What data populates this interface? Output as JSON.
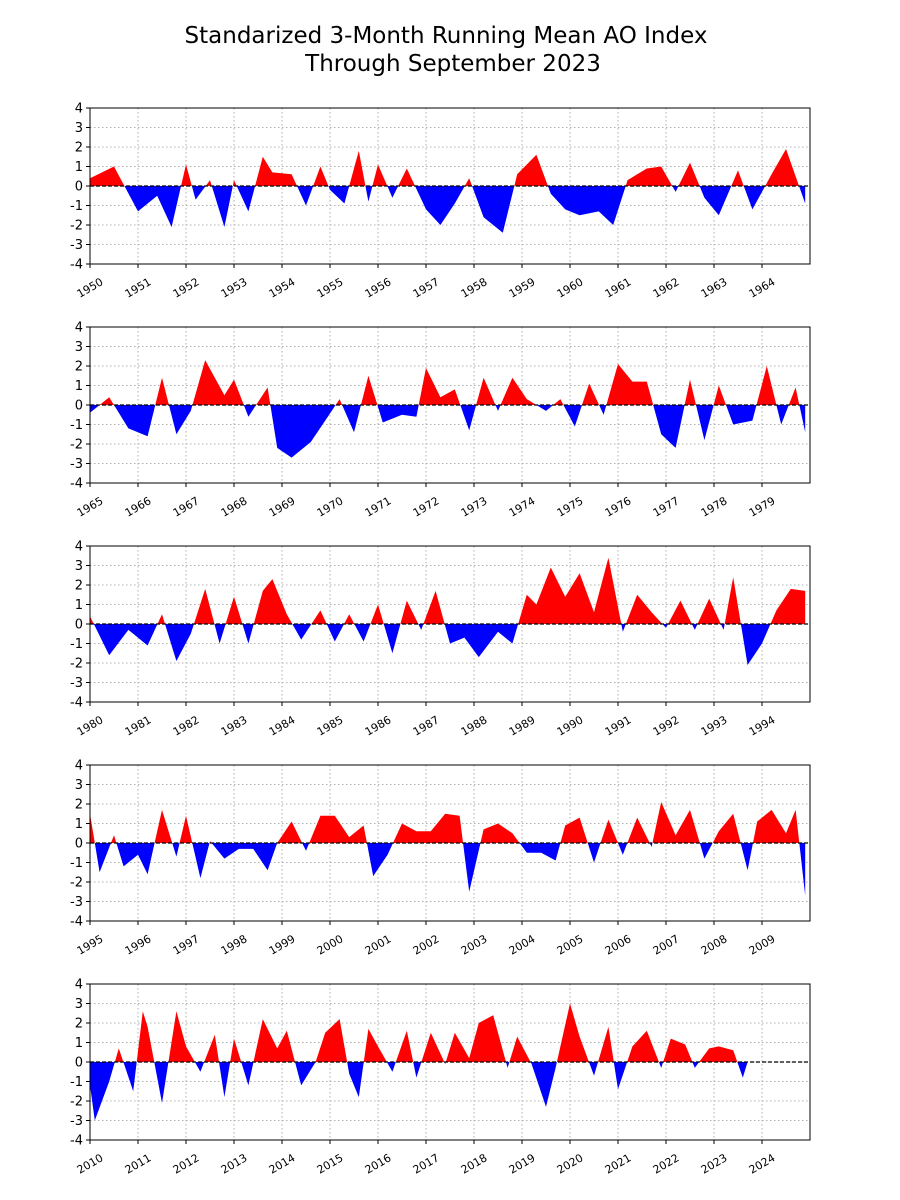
{
  "title": {
    "line1": "Standarized 3-Month Running Mean AO Index",
    "line2": "Through September 2023"
  },
  "colors": {
    "positive": "#ff0000",
    "negative": "#0000ff",
    "grid": "#b0b0b0",
    "zero_line": "#000000"
  },
  "chart_data": [
    {
      "type": "area",
      "ylim": [
        -4,
        4
      ],
      "yticks": [
        -4,
        -3,
        -2,
        -1,
        0,
        1,
        2,
        3,
        4
      ],
      "xlim": [
        1950,
        1965
      ],
      "xticks": [
        "1950",
        "1951",
        "1952",
        "1953",
        "1954",
        "1955",
        "1956",
        "1957",
        "1958",
        "1959",
        "1960",
        "1961",
        "1962",
        "1963",
        "1964"
      ],
      "grid": true,
      "zero_line": "dashed",
      "fill": "red above zero, blue below zero",
      "x": [
        1950.0,
        1950.5,
        1951.0,
        1951.4,
        1951.7,
        1952.0,
        1952.2,
        1952.5,
        1952.8,
        1953.0,
        1953.3,
        1953.6,
        1953.8,
        1954.2,
        1954.5,
        1954.8,
        1955.0,
        1955.3,
        1955.6,
        1955.8,
        1956.0,
        1956.3,
        1956.6,
        1957.0,
        1957.3,
        1957.6,
        1957.9,
        1958.2,
        1958.6,
        1958.9,
        1959.3,
        1959.6,
        1959.9,
        1960.2,
        1960.6,
        1960.9,
        1961.2,
        1961.6,
        1961.9,
        1962.2,
        1962.5,
        1962.8,
        1963.1,
        1963.5,
        1963.8,
        1964.2,
        1964.5,
        1964.9
      ],
      "y": [
        0.4,
        1.0,
        -1.3,
        -0.5,
        -2.1,
        1.1,
        -0.7,
        0.3,
        -2.1,
        0.3,
        -1.3,
        1.5,
        0.7,
        0.6,
        -1.0,
        1.0,
        -0.2,
        -0.9,
        1.8,
        -0.8,
        1.1,
        -0.6,
        0.9,
        -1.2,
        -2.0,
        -0.9,
        0.4,
        -1.6,
        -2.4,
        0.6,
        1.6,
        -0.4,
        -1.2,
        -1.5,
        -1.3,
        -2.0,
        0.3,
        0.9,
        1.0,
        -0.3,
        1.2,
        -0.6,
        -1.5,
        0.8,
        -1.2,
        0.6,
        1.9,
        -0.9
      ]
    },
    {
      "type": "area",
      "ylim": [
        -4,
        4
      ],
      "yticks": [
        -4,
        -3,
        -2,
        -1,
        0,
        1,
        2,
        3,
        4
      ],
      "xlim": [
        1965,
        1980
      ],
      "xticks": [
        "1965",
        "1966",
        "1967",
        "1968",
        "1969",
        "1970",
        "1971",
        "1972",
        "1973",
        "1974",
        "1975",
        "1976",
        "1977",
        "1978",
        "1979"
      ],
      "grid": true,
      "zero_line": "dashed",
      "fill": "red above zero, blue below zero",
      "x": [
        1965.0,
        1965.4,
        1965.8,
        1966.2,
        1966.5,
        1966.8,
        1967.1,
        1967.4,
        1967.8,
        1968.0,
        1968.3,
        1968.7,
        1968.9,
        1969.2,
        1969.6,
        1969.9,
        1970.2,
        1970.5,
        1970.8,
        1971.1,
        1971.5,
        1971.8,
        1972.0,
        1972.3,
        1972.6,
        1972.9,
        1973.2,
        1973.5,
        1973.8,
        1974.1,
        1974.5,
        1974.8,
        1975.1,
        1975.4,
        1975.7,
        1976.0,
        1976.3,
        1976.6,
        1976.9,
        1977.2,
        1977.5,
        1977.8,
        1978.1,
        1978.4,
        1978.8,
        1979.1,
        1979.4,
        1979.7,
        1979.9
      ],
      "y": [
        -0.4,
        0.4,
        -1.2,
        -1.6,
        1.4,
        -1.5,
        -0.3,
        2.3,
        0.5,
        1.3,
        -0.6,
        0.9,
        -2.2,
        -2.7,
        -1.9,
        -0.8,
        0.3,
        -1.4,
        1.5,
        -0.9,
        -0.5,
        -0.6,
        1.9,
        0.4,
        0.8,
        -1.3,
        1.4,
        -0.3,
        1.4,
        0.3,
        -0.3,
        0.3,
        -1.1,
        1.1,
        -0.5,
        2.1,
        1.2,
        1.2,
        -1.5,
        -2.2,
        1.3,
        -1.8,
        1.0,
        -1.0,
        -0.8,
        2.0,
        -1.0,
        0.9,
        -1.4
      ]
    },
    {
      "type": "area",
      "ylim": [
        -4,
        4
      ],
      "yticks": [
        -4,
        -3,
        -2,
        -1,
        0,
        1,
        2,
        3,
        4
      ],
      "xlim": [
        1980,
        1995
      ],
      "xticks": [
        "1980",
        "1981",
        "1982",
        "1983",
        "1984",
        "1985",
        "1986",
        "1987",
        "1988",
        "1989",
        "1990",
        "1991",
        "1992",
        "1993",
        "1994"
      ],
      "grid": true,
      "zero_line": "dashed",
      "fill": "red above zero, blue below zero",
      "x": [
        1980.0,
        1980.4,
        1980.8,
        1981.2,
        1981.5,
        1981.8,
        1982.1,
        1982.4,
        1982.7,
        1983.0,
        1983.3,
        1983.6,
        1983.8,
        1984.1,
        1984.4,
        1984.8,
        1985.1,
        1985.4,
        1985.7,
        1986.0,
        1986.3,
        1986.6,
        1986.9,
        1987.2,
        1987.5,
        1987.8,
        1988.1,
        1988.5,
        1988.8,
        1989.1,
        1989.3,
        1989.6,
        1989.9,
        1990.2,
        1990.5,
        1990.8,
        1991.1,
        1991.4,
        1991.7,
        1992.0,
        1992.3,
        1992.6,
        1992.9,
        1993.2,
        1993.4,
        1993.7,
        1994.0,
        1994.3,
        1994.6,
        1994.9
      ],
      "y": [
        0.4,
        -1.6,
        -0.3,
        -1.1,
        0.5,
        -1.9,
        -0.5,
        1.8,
        -1.0,
        1.4,
        -1.0,
        1.7,
        2.3,
        0.5,
        -0.8,
        0.7,
        -0.9,
        0.5,
        -0.9,
        1.0,
        -1.5,
        1.2,
        -0.3,
        1.7,
        -1.0,
        -0.7,
        -1.7,
        -0.4,
        -1.0,
        1.5,
        1.0,
        2.9,
        1.4,
        2.6,
        0.6,
        3.4,
        -0.4,
        1.5,
        0.6,
        -0.2,
        1.2,
        -0.3,
        1.3,
        -0.3,
        2.4,
        -2.1,
        -1.0,
        0.7,
        1.8,
        1.7
      ]
    },
    {
      "type": "area",
      "ylim": [
        -4,
        4
      ],
      "yticks": [
        -4,
        -3,
        -2,
        -1,
        0,
        1,
        2,
        3,
        4
      ],
      "xlim": [
        1995,
        2010
      ],
      "xticks": [
        "1995",
        "1996",
        "1997",
        "1998",
        "1999",
        "2000",
        "2001",
        "2002",
        "2003",
        "2004",
        "2005",
        "2006",
        "2007",
        "2008",
        "2009"
      ],
      "grid": true,
      "zero_line": "dashed",
      "fill": "red above zero, blue below zero",
      "x": [
        1995.0,
        1995.2,
        1995.5,
        1995.7,
        1996.0,
        1996.2,
        1996.5,
        1996.8,
        1997.0,
        1997.3,
        1997.5,
        1997.8,
        1998.1,
        1998.4,
        1998.7,
        1998.9,
        1999.2,
        1999.5,
        1999.8,
        2000.1,
        2000.4,
        2000.7,
        2000.9,
        2001.2,
        2001.5,
        2001.8,
        2002.1,
        2002.4,
        2002.7,
        2002.9,
        2003.2,
        2003.5,
        2003.8,
        2004.1,
        2004.4,
        2004.7,
        2004.9,
        2005.2,
        2005.5,
        2005.8,
        2006.1,
        2006.4,
        2006.7,
        2006.9,
        2007.2,
        2007.5,
        2007.8,
        2008.1,
        2008.4,
        2008.7,
        2008.9,
        2009.2,
        2009.5,
        2009.7,
        2009.9
      ],
      "y": [
        1.5,
        -1.5,
        0.4,
        -1.2,
        -0.6,
        -1.6,
        1.7,
        -0.7,
        1.4,
        -1.8,
        0.1,
        -0.8,
        -0.3,
        -0.3,
        -1.4,
        0.0,
        1.1,
        -0.4,
        1.4,
        1.4,
        0.3,
        0.9,
        -1.7,
        -0.6,
        1.0,
        0.6,
        0.6,
        1.5,
        1.4,
        -2.5,
        0.7,
        1.0,
        0.5,
        -0.5,
        -0.5,
        -0.9,
        0.9,
        1.3,
        -1.0,
        1.2,
        -0.6,
        1.3,
        -0.2,
        2.1,
        0.4,
        1.7,
        -0.8,
        0.6,
        1.5,
        -1.4,
        1.1,
        1.7,
        0.5,
        1.7,
        -2.7
      ]
    },
    {
      "type": "area",
      "ylim": [
        -4,
        4
      ],
      "yticks": [
        -4,
        -3,
        -2,
        -1,
        0,
        1,
        2,
        3,
        4
      ],
      "xlim": [
        2010,
        2025
      ],
      "xticks": [
        "2010",
        "2011",
        "2012",
        "2013",
        "2014",
        "2015",
        "2016",
        "2017",
        "2018",
        "2019",
        "2020",
        "2021",
        "2022",
        "2023",
        "2024"
      ],
      "grid": true,
      "zero_line": "dashed",
      "fill": "red above zero, blue below zero; data end September 2023",
      "x": [
        2010.0,
        2010.1,
        2010.4,
        2010.6,
        2010.9,
        2011.1,
        2011.2,
        2011.5,
        2011.8,
        2012.0,
        2012.3,
        2012.6,
        2012.8,
        2013.0,
        2013.3,
        2013.6,
        2013.9,
        2014.1,
        2014.4,
        2014.7,
        2014.9,
        2015.2,
        2015.4,
        2015.6,
        2015.8,
        2016.0,
        2016.3,
        2016.6,
        2016.8,
        2017.1,
        2017.4,
        2017.6,
        2017.9,
        2018.1,
        2018.4,
        2018.7,
        2018.9,
        2019.2,
        2019.5,
        2019.7,
        2020.0,
        2020.2,
        2020.5,
        2020.8,
        2021.0,
        2021.3,
        2021.6,
        2021.9,
        2022.1,
        2022.4,
        2022.6,
        2022.9,
        2023.1,
        2023.4,
        2023.6,
        2023.7
      ],
      "y": [
        -1.2,
        -3.0,
        -1.0,
        0.7,
        -1.5,
        2.6,
        1.8,
        -2.1,
        2.6,
        0.8,
        -0.5,
        1.4,
        -1.8,
        1.2,
        -1.2,
        2.2,
        0.7,
        1.6,
        -1.2,
        0.0,
        1.5,
        2.2,
        -0.6,
        -1.8,
        1.7,
        0.8,
        -0.5,
        1.6,
        -0.8,
        1.5,
        -0.1,
        1.5,
        0.2,
        2.0,
        2.4,
        -0.3,
        1.3,
        -0.1,
        -2.3,
        -0.3,
        3.0,
        1.3,
        -0.7,
        1.8,
        -1.4,
        0.8,
        1.6,
        -0.3,
        1.2,
        0.9,
        -0.3,
        0.7,
        0.8,
        0.6,
        -0.8,
        0.0
      ]
    }
  ]
}
